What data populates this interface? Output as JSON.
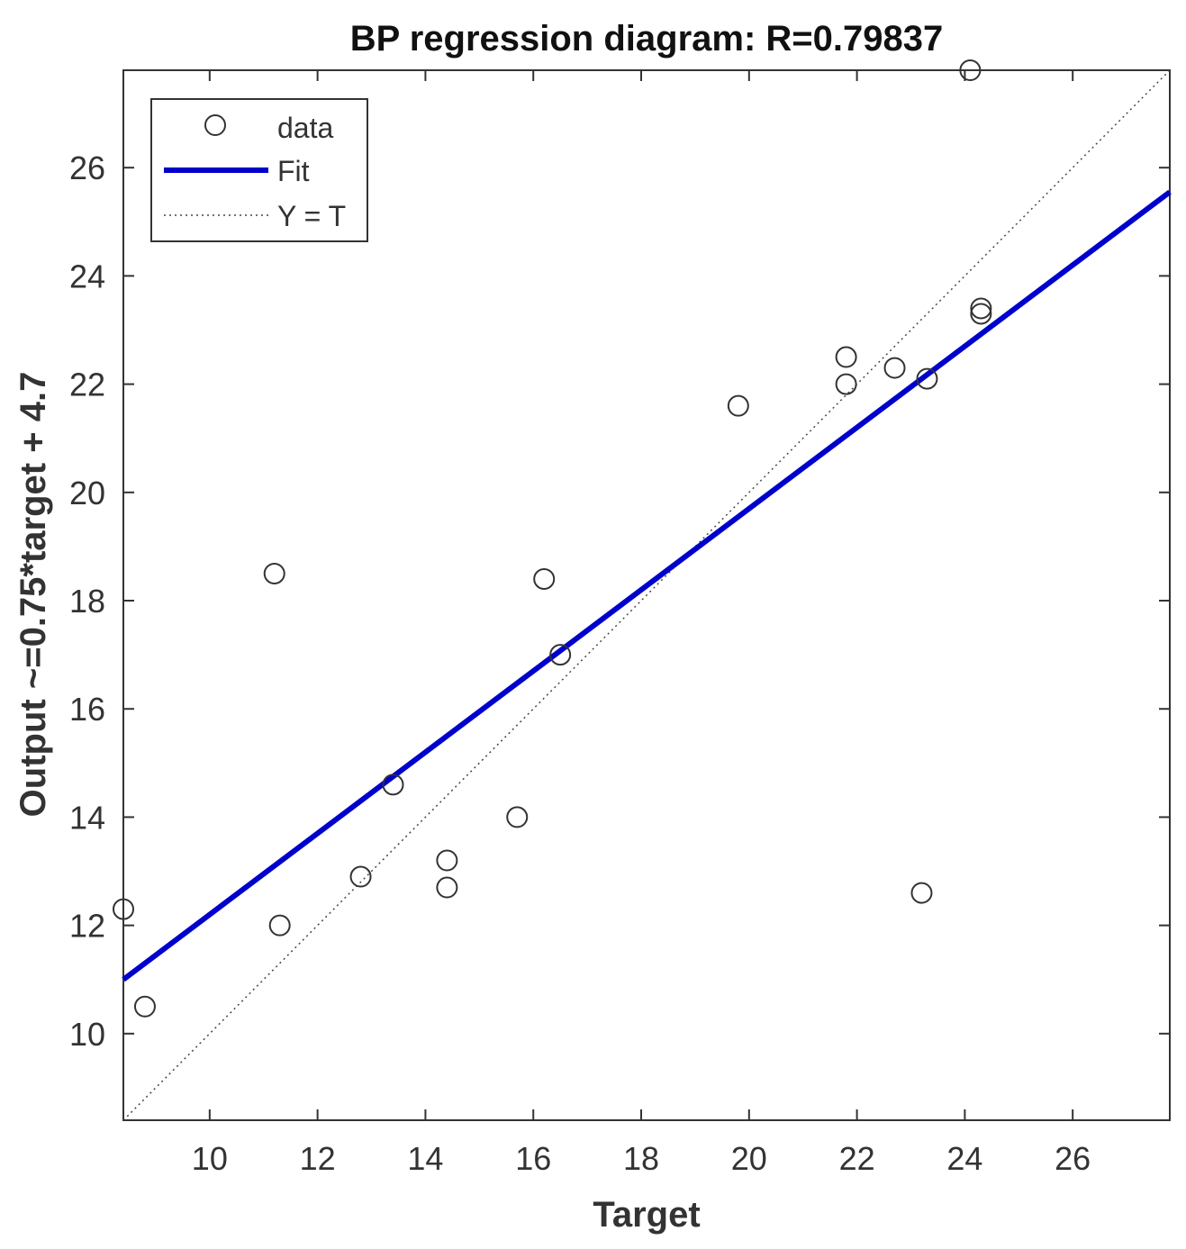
{
  "chart_data": {
    "type": "scatter",
    "title": "BP regression diagram: R=0.79837",
    "xlabel": "Target",
    "ylabel": "Output ~=0.75*target + 4.7",
    "xlim": [
      8.4,
      27.8
    ],
    "ylim": [
      8.4,
      27.8
    ],
    "xticks": [
      10,
      12,
      14,
      16,
      18,
      20,
      22,
      24,
      26
    ],
    "yticks": [
      10,
      12,
      14,
      16,
      18,
      20,
      22,
      24,
      26
    ],
    "xtick_labels": [
      "10",
      "12",
      "14",
      "16",
      "18",
      "20",
      "22",
      "24",
      "26"
    ],
    "ytick_labels": [
      "10",
      "12",
      "14",
      "16",
      "18",
      "20",
      "22",
      "24",
      "26"
    ],
    "grid": false,
    "legend_position": "top-left",
    "series": [
      {
        "name": "data",
        "kind": "markers",
        "marker": "open-circle",
        "color": "#333333",
        "points": [
          {
            "x": 8.4,
            "y": 12.3
          },
          {
            "x": 8.8,
            "y": 10.5
          },
          {
            "x": 11.2,
            "y": 18.5
          },
          {
            "x": 11.3,
            "y": 12.0
          },
          {
            "x": 12.8,
            "y": 12.9
          },
          {
            "x": 13.4,
            "y": 14.6
          },
          {
            "x": 14.4,
            "y": 13.2
          },
          {
            "x": 14.4,
            "y": 12.7
          },
          {
            "x": 15.7,
            "y": 14.0
          },
          {
            "x": 16.2,
            "y": 18.4
          },
          {
            "x": 16.5,
            "y": 17.0
          },
          {
            "x": 19.8,
            "y": 21.6
          },
          {
            "x": 21.8,
            "y": 22.5
          },
          {
            "x": 21.8,
            "y": 22.0
          },
          {
            "x": 22.7,
            "y": 22.3
          },
          {
            "x": 23.2,
            "y": 12.6
          },
          {
            "x": 23.3,
            "y": 22.1
          },
          {
            "x": 24.1,
            "y": 27.8
          },
          {
            "x": 24.3,
            "y": 23.4
          },
          {
            "x": 24.3,
            "y": 23.3
          }
        ]
      },
      {
        "name": "Fit",
        "kind": "line",
        "color": "#0000cc",
        "slope": 0.75,
        "intercept": 4.7
      },
      {
        "name": "Y = T",
        "kind": "line",
        "style": "dotted",
        "color": "#444444",
        "slope": 1,
        "intercept": 0
      }
    ]
  }
}
